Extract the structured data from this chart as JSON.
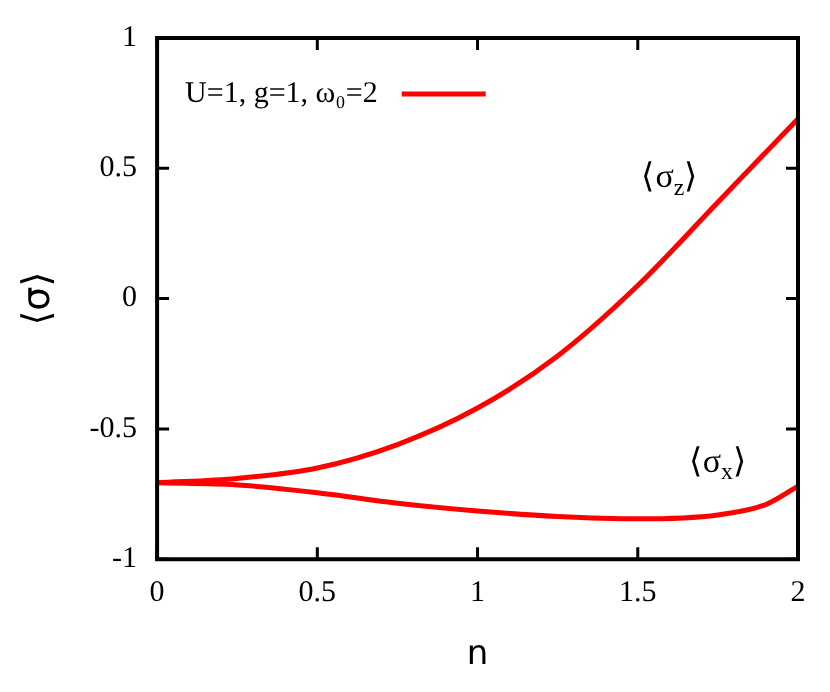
{
  "chart_data": {
    "type": "line",
    "xlabel": "n",
    "ylabel": "⟨σ⟩",
    "xlim": [
      0,
      2
    ],
    "xticks": [
      0,
      0.5,
      1,
      1.5,
      2
    ],
    "ylim": [
      -1,
      1
    ],
    "yticks": [
      -1,
      -0.5,
      0,
      0.5,
      1
    ],
    "grid": false,
    "legend": "top left",
    "marker": "none",
    "line_style": "solid",
    "series": [
      {
        "name": "U=1, g=1, ω₀=2",
        "color": "#ff0000",
        "x": [
          0,
          0.25,
          0.5,
          0.75,
          1,
          1.25,
          1.5,
          1.75,
          2
        ],
        "values": [
          -0.707,
          -0.69,
          -0.65,
          -0.56,
          -0.42,
          -0.22,
          0.05,
          0.37,
          0.69
        ]
      },
      {
        "color": "#ff0000",
        "x": [
          0,
          0.25,
          0.5,
          0.75,
          1,
          1.25,
          1.5,
          1.75,
          1.9,
          2
        ],
        "values": [
          -0.707,
          -0.715,
          -0.745,
          -0.785,
          -0.815,
          -0.836,
          -0.845,
          -0.83,
          -0.79,
          -0.72
        ]
      }
    ],
    "annotations": [
      "⟨σ$_{z}$⟩",
      "⟨σ$_{x}$⟩"
    ]
  }
}
